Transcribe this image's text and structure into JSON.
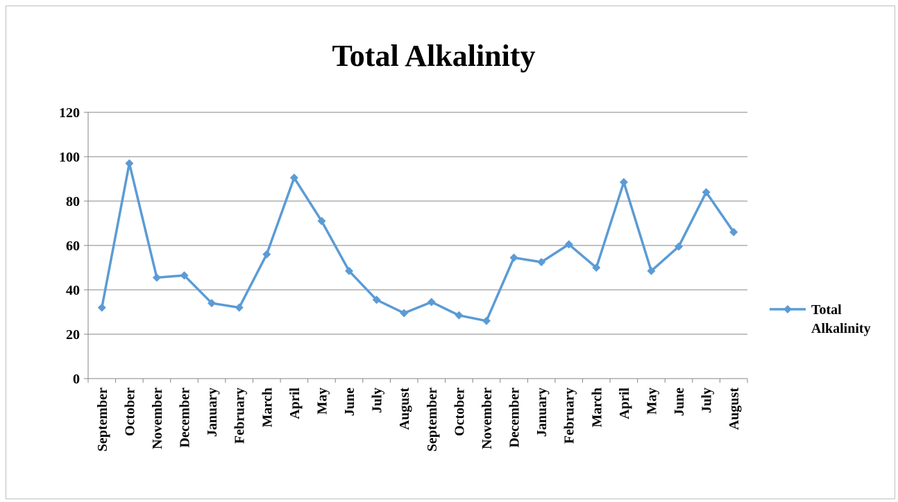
{
  "chart_data": {
    "type": "line",
    "title": "Total Alkalinity",
    "xlabel": "",
    "ylabel": "",
    "ylim": [
      0,
      120
    ],
    "yticks": [
      "0",
      "20",
      "40",
      "60",
      "80",
      "100",
      "120"
    ],
    "grid": true,
    "legend": "right",
    "categories": [
      "September",
      "October",
      "November",
      "December",
      "January",
      "February",
      "March",
      "April",
      "May",
      "June",
      "July",
      "August",
      "September",
      "October",
      "November",
      "December",
      "January",
      "February",
      "March",
      "April",
      "May",
      "June",
      "July",
      "August"
    ],
    "series": [
      {
        "name": "Total Alkalinity",
        "color": "#5b9bd5",
        "legend_lines": [
          "Total",
          "Alkalinity"
        ],
        "values": [
          32,
          97,
          45.5,
          46.5,
          34,
          32,
          56,
          90.5,
          71,
          48.5,
          35.5,
          29.5,
          34.5,
          28.5,
          26,
          54.5,
          52.5,
          60.5,
          50,
          88.5,
          48.5,
          59.5,
          84,
          66
        ]
      }
    ]
  }
}
